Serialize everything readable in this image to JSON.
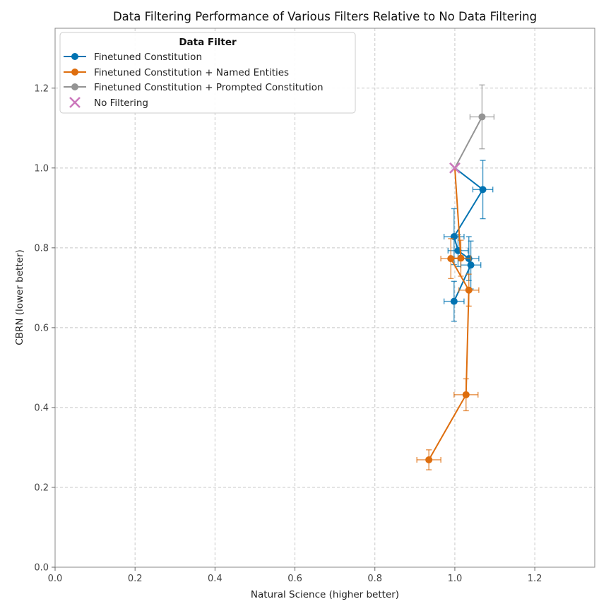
{
  "chart_data": {
    "type": "scatter",
    "title": "Data Filtering Performance of Various Filters Relative to No Data Filtering",
    "xlabel": "Natural Science (higher better)",
    "ylabel": "CBRN (lower better)",
    "xlim": [
      0,
      1.35
    ],
    "ylim": [
      0,
      1.35
    ],
    "xticks": [
      "0.0",
      "0.2",
      "0.4",
      "0.6",
      "0.8",
      "1.0",
      "1.2"
    ],
    "yticks": [
      "0.0",
      "0.2",
      "0.4",
      "0.6",
      "0.8",
      "1.0",
      "1.2"
    ],
    "grid": true,
    "legend": {
      "title": "Data Filter",
      "position": "top-left"
    },
    "series": [
      {
        "name": "Finetuned Constitution",
        "color": "#0173b2",
        "marker": "circle",
        "points": [
          {
            "x": 1.0,
            "y": 1.0
          },
          {
            "x": 1.07,
            "y": 0.946,
            "xerr": 0.025,
            "yerr": 0.073
          },
          {
            "x": 0.998,
            "y": 0.828,
            "xerr": 0.025,
            "yerr": 0.07
          },
          {
            "x": 1.008,
            "y": 0.793,
            "xerr": 0.025,
            "yerr": 0.04
          },
          {
            "x": 1.035,
            "y": 0.773,
            "xerr": 0.025,
            "yerr": 0.055
          },
          {
            "x": 1.04,
            "y": 0.757,
            "xerr": 0.025,
            "yerr": 0.06
          },
          {
            "x": 0.998,
            "y": 0.666,
            "xerr": 0.025,
            "yerr": 0.05
          }
        ]
      },
      {
        "name": "Finetuned Constitution + Named Entities",
        "color": "#de6e0e",
        "marker": "circle",
        "points": [
          {
            "x": 1.0,
            "y": 1.0
          },
          {
            "x": 1.015,
            "y": 0.774,
            "xerr": 0.025,
            "yerr": 0.045
          },
          {
            "x": 0.99,
            "y": 0.773,
            "xerr": 0.025,
            "yerr": 0.05
          },
          {
            "x": 1.035,
            "y": 0.694,
            "xerr": 0.025,
            "yerr": 0.04
          },
          {
            "x": 1.028,
            "y": 0.432,
            "xerr": 0.03,
            "yerr": 0.04
          },
          {
            "x": 0.935,
            "y": 0.269,
            "xerr": 0.03,
            "yerr": 0.025
          }
        ]
      },
      {
        "name": "Finetuned Constitution + Prompted Constitution",
        "color": "#949494",
        "marker": "circle",
        "points": [
          {
            "x": 1.0,
            "y": 1.0
          },
          {
            "x": 1.068,
            "y": 1.128,
            "xerr": 0.03,
            "yerr": 0.08
          }
        ]
      },
      {
        "name": "No Filtering",
        "color": "#cc78bc",
        "marker": "x",
        "points": [
          {
            "x": 1.0,
            "y": 1.0
          }
        ]
      }
    ]
  }
}
